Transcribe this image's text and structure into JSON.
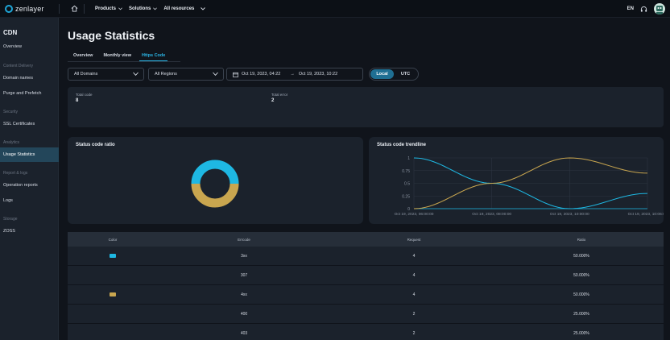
{
  "topbar": {
    "logo_text": "zenlayer",
    "nav": [
      {
        "label": "Products"
      },
      {
        "label": "Solutions"
      },
      {
        "label": "All resources"
      }
    ],
    "language": "EN"
  },
  "sidebar": {
    "title": "CDN",
    "overview": "Overview",
    "sections": {
      "content_delivery": "Content Delivery",
      "security": "Security",
      "analytics": "Analytics",
      "report_logs": "Report & logs",
      "storage": "Storage"
    },
    "items": {
      "domain_names": "Domain names",
      "purge_prefetch": "Purge and Prefetch",
      "ssl": "SSL Certificates",
      "usage_statistics": "Usage Statistics",
      "operation_reports": "Operation reports",
      "logs": "Logs",
      "zoss": "ZOSS"
    }
  },
  "page": {
    "title": "Usage Statistics",
    "tabs": [
      "Overview",
      "Monthly view",
      "Https Code"
    ],
    "active_tab": "Https Code"
  },
  "filters": {
    "domains": "All Domains",
    "regions": "All Regions",
    "date_start": "Oct 19, 2023, 04:22",
    "date_end": "Oct 19, 2023, 10:22",
    "timezone_options": [
      "Local",
      "UTC"
    ],
    "timezone_selected": "Local"
  },
  "totals": {
    "total_code_label": "Total code",
    "total_code_value": "8",
    "total_error_label": "Total error",
    "total_error_value": "2"
  },
  "ratio_chart": {
    "title": "Status code ratio"
  },
  "chart_data": [
    {
      "type": "pie",
      "title": "Status code ratio",
      "donut": true,
      "slices": [
        {
          "label": "3xx",
          "value": 50,
          "color": "#1eb8e3"
        },
        {
          "label": "4xx",
          "value": 50,
          "color": "#c9a64f"
        }
      ]
    },
    {
      "type": "line",
      "title": "Status code trendline",
      "x": [
        "Oct 19, 2023, 06:00:00",
        "Oct 19, 2023, 08:00:00",
        "Oct 19, 2023, 10:00:00",
        "Oct 19, 2023, 10:06:00"
      ],
      "ylim": [
        0,
        1
      ],
      "yticks": [
        "0",
        "0.25",
        "0.5",
        "0.75",
        "1"
      ],
      "series": [
        {
          "color": "#1eb8e3",
          "values": [
            1,
            0.5,
            0,
            0.3
          ]
        },
        {
          "color": "#c9a64f",
          "values": [
            0,
            0.5,
            1,
            0.7
          ]
        }
      ]
    }
  ],
  "trend_chart": {
    "title": "Status code trendline",
    "yticks": [
      "1",
      "0.75",
      "0.5",
      "0.25",
      "0"
    ],
    "xticks": [
      "Oct 19, 2023, 06:00:00",
      "Oct 19, 2023, 08:00:00",
      "Oct 19, 2023, 10:00:00",
      "Oct 19, 2023, 10:06:00"
    ]
  },
  "table": {
    "headers": [
      "Color",
      "Errcode",
      "Request",
      "Ratio"
    ],
    "rows": [
      {
        "color": "#1eb8e3",
        "code": "3xx",
        "request": "4",
        "ratio": "50.000%"
      },
      {
        "color": "",
        "code": "307",
        "request": "4",
        "ratio": "50.000%"
      },
      {
        "color": "#c9a64f",
        "code": "4xx",
        "request": "4",
        "ratio": "50.000%"
      },
      {
        "color": "",
        "code": "400",
        "request": "2",
        "ratio": "25.000%"
      },
      {
        "color": "",
        "code": "403",
        "request": "2",
        "ratio": "25.000%"
      }
    ]
  }
}
